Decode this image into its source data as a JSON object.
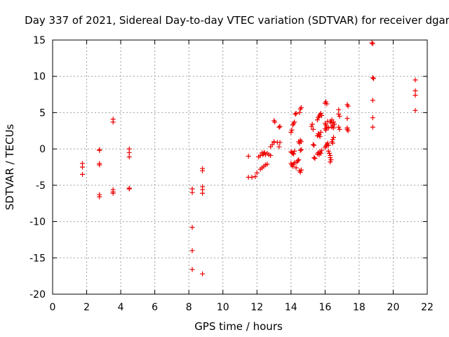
{
  "chart_data": {
    "type": "scatter",
    "title": "Day 337 of 2021, Sidereal Day-to-day VTEC variation (SDTVAR) for receiver dgar",
    "xlabel": "GPS time / hours",
    "ylabel": "SDTVAR / TECUs",
    "xlim": [
      0,
      22
    ],
    "ylim": [
      -20,
      15
    ],
    "xticks": [
      0,
      2,
      4,
      6,
      8,
      10,
      12,
      14,
      16,
      18,
      20,
      22
    ],
    "yticks": [
      -20,
      -15,
      -10,
      -5,
      0,
      5,
      10,
      15
    ],
    "grid": true,
    "marker": "plus",
    "color": "#ee0000",
    "points": [
      [
        1.75,
        -2.0
      ],
      [
        1.75,
        -2.5
      ],
      [
        1.75,
        -3.5
      ],
      [
        2.75,
        -0.2
      ],
      [
        2.75,
        -0.1
      ],
      [
        2.75,
        -2.0
      ],
      [
        2.75,
        -2.2
      ],
      [
        2.75,
        -6.3
      ],
      [
        2.75,
        -6.6
      ],
      [
        3.55,
        4.1
      ],
      [
        3.55,
        3.7
      ],
      [
        3.55,
        -5.6
      ],
      [
        3.55,
        -5.9
      ],
      [
        3.55,
        -6.1
      ],
      [
        4.5,
        0.0
      ],
      [
        4.5,
        -0.5
      ],
      [
        4.5,
        -1.1
      ],
      [
        4.5,
        -5.4
      ],
      [
        4.5,
        -5.5
      ],
      [
        8.2,
        -5.5
      ],
      [
        8.2,
        -6.0
      ],
      [
        8.2,
        -10.8
      ],
      [
        8.2,
        -14.0
      ],
      [
        8.2,
        -16.6
      ],
      [
        8.8,
        -2.7
      ],
      [
        8.8,
        -3.0
      ],
      [
        8.8,
        -5.2
      ],
      [
        8.8,
        -5.6
      ],
      [
        8.8,
        -6.1
      ],
      [
        8.8,
        -17.2
      ],
      [
        11.5,
        -1.0
      ],
      [
        11.5,
        -3.9
      ],
      [
        11.7,
        -3.9
      ],
      [
        11.9,
        -3.8
      ],
      [
        12.0,
        -3.3
      ],
      [
        12.1,
        -1.1
      ],
      [
        12.2,
        -0.9
      ],
      [
        12.3,
        -0.5
      ],
      [
        12.35,
        -0.8
      ],
      [
        12.4,
        -0.6
      ],
      [
        12.45,
        -0.5
      ],
      [
        12.5,
        -0.8
      ],
      [
        12.6,
        -0.6
      ],
      [
        12.7,
        -0.8
      ],
      [
        12.8,
        -0.9
      ],
      [
        12.2,
        -2.8
      ],
      [
        12.3,
        -2.6
      ],
      [
        12.4,
        -2.4
      ],
      [
        12.5,
        -2.2
      ],
      [
        12.6,
        -2.1
      ],
      [
        12.8,
        0.3
      ],
      [
        12.9,
        0.6
      ],
      [
        13.0,
        0.9
      ],
      [
        13.0,
        1.0
      ],
      [
        13.2,
        0.9
      ],
      [
        13.3,
        0.3
      ],
      [
        13.35,
        0.9
      ],
      [
        13.0,
        3.9
      ],
      [
        13.05,
        3.7
      ],
      [
        13.3,
        3.0
      ],
      [
        13.35,
        3.1
      ],
      [
        14.0,
        -0.4
      ],
      [
        14.05,
        -0.5
      ],
      [
        14.1,
        -0.6
      ],
      [
        14.15,
        -0.7
      ],
      [
        14.2,
        -0.3
      ],
      [
        14.0,
        -2.0
      ],
      [
        14.05,
        -2.2
      ],
      [
        14.1,
        -2.4
      ],
      [
        14.15,
        -2.1
      ],
      [
        14.2,
        -1.9
      ],
      [
        14.3,
        -2.6
      ],
      [
        14.35,
        -1.8
      ],
      [
        14.4,
        -1.6
      ],
      [
        14.45,
        -1.5
      ],
      [
        14.5,
        -3.0
      ],
      [
        14.55,
        -3.2
      ],
      [
        14.6,
        -2.9
      ],
      [
        14.0,
        2.3
      ],
      [
        14.05,
        2.6
      ],
      [
        14.1,
        3.3
      ],
      [
        14.15,
        3.5
      ],
      [
        14.2,
        3.7
      ],
      [
        14.25,
        4.8
      ],
      [
        14.3,
        4.9
      ],
      [
        14.5,
        5.0
      ],
      [
        14.55,
        5.5
      ],
      [
        14.6,
        5.7
      ],
      [
        14.45,
        1.0
      ],
      [
        14.5,
        0.8
      ],
      [
        14.55,
        1.2
      ],
      [
        14.6,
        1.0
      ],
      [
        14.55,
        -0.2
      ],
      [
        14.6,
        -0.1
      ],
      [
        15.2,
        3.1
      ],
      [
        15.25,
        3.4
      ],
      [
        15.3,
        2.7
      ],
      [
        15.3,
        0.6
      ],
      [
        15.35,
        0.5
      ],
      [
        15.35,
        -1.2
      ],
      [
        15.4,
        -1.3
      ],
      [
        15.55,
        4.0
      ],
      [
        15.6,
        4.3
      ],
      [
        15.65,
        4.5
      ],
      [
        15.7,
        4.7
      ],
      [
        15.75,
        4.9
      ],
      [
        15.8,
        4.6
      ],
      [
        15.55,
        1.8
      ],
      [
        15.6,
        2.1
      ],
      [
        15.65,
        1.9
      ],
      [
        15.7,
        1.7
      ],
      [
        15.75,
        2.3
      ],
      [
        15.55,
        -0.7
      ],
      [
        15.6,
        -0.5
      ],
      [
        15.65,
        -0.8
      ],
      [
        15.7,
        -0.4
      ],
      [
        15.75,
        -0.6
      ],
      [
        15.8,
        -0.2
      ],
      [
        16.0,
        6.3
      ],
      [
        16.05,
        6.5
      ],
      [
        16.1,
        6.2
      ],
      [
        16.0,
        3.5
      ],
      [
        16.05,
        3.3
      ],
      [
        16.1,
        3.0
      ],
      [
        16.15,
        3.8
      ],
      [
        16.0,
        2.8
      ],
      [
        16.05,
        2.6
      ],
      [
        16.2,
        2.9
      ],
      [
        16.0,
        0.2
      ],
      [
        16.05,
        0.4
      ],
      [
        16.1,
        0.6
      ],
      [
        16.15,
        0.8
      ],
      [
        16.2,
        0.5
      ],
      [
        16.2,
        -0.3
      ],
      [
        16.25,
        -0.6
      ],
      [
        16.3,
        -0.9
      ],
      [
        16.3,
        -1.2
      ],
      [
        16.35,
        -1.5
      ],
      [
        16.3,
        -1.8
      ],
      [
        16.4,
        1.0
      ],
      [
        16.45,
        0.8
      ],
      [
        16.45,
        1.3
      ],
      [
        16.5,
        2.9
      ],
      [
        16.5,
        1.6
      ],
      [
        16.4,
        3.0
      ],
      [
        16.45,
        3.2
      ],
      [
        16.3,
        3.8
      ],
      [
        16.35,
        3.6
      ],
      [
        16.4,
        4.0
      ],
      [
        16.5,
        3.7
      ],
      [
        16.55,
        3.4
      ],
      [
        16.8,
        5.4
      ],
      [
        16.8,
        4.8
      ],
      [
        16.85,
        4.5
      ],
      [
        16.8,
        3.0
      ],
      [
        16.85,
        2.7
      ],
      [
        17.3,
        6.1
      ],
      [
        17.35,
        5.9
      ],
      [
        17.3,
        4.2
      ],
      [
        17.3,
        2.9
      ],
      [
        17.35,
        2.5
      ],
      [
        17.3,
        2.7
      ],
      [
        18.75,
        14.6
      ],
      [
        18.8,
        14.5
      ],
      [
        18.8,
        9.8
      ],
      [
        18.85,
        9.7
      ],
      [
        18.8,
        6.7
      ],
      [
        18.8,
        4.3
      ],
      [
        18.8,
        3.0
      ],
      [
        21.3,
        9.5
      ],
      [
        21.3,
        8.0
      ],
      [
        21.3,
        7.4
      ],
      [
        21.3,
        5.3
      ]
    ]
  }
}
